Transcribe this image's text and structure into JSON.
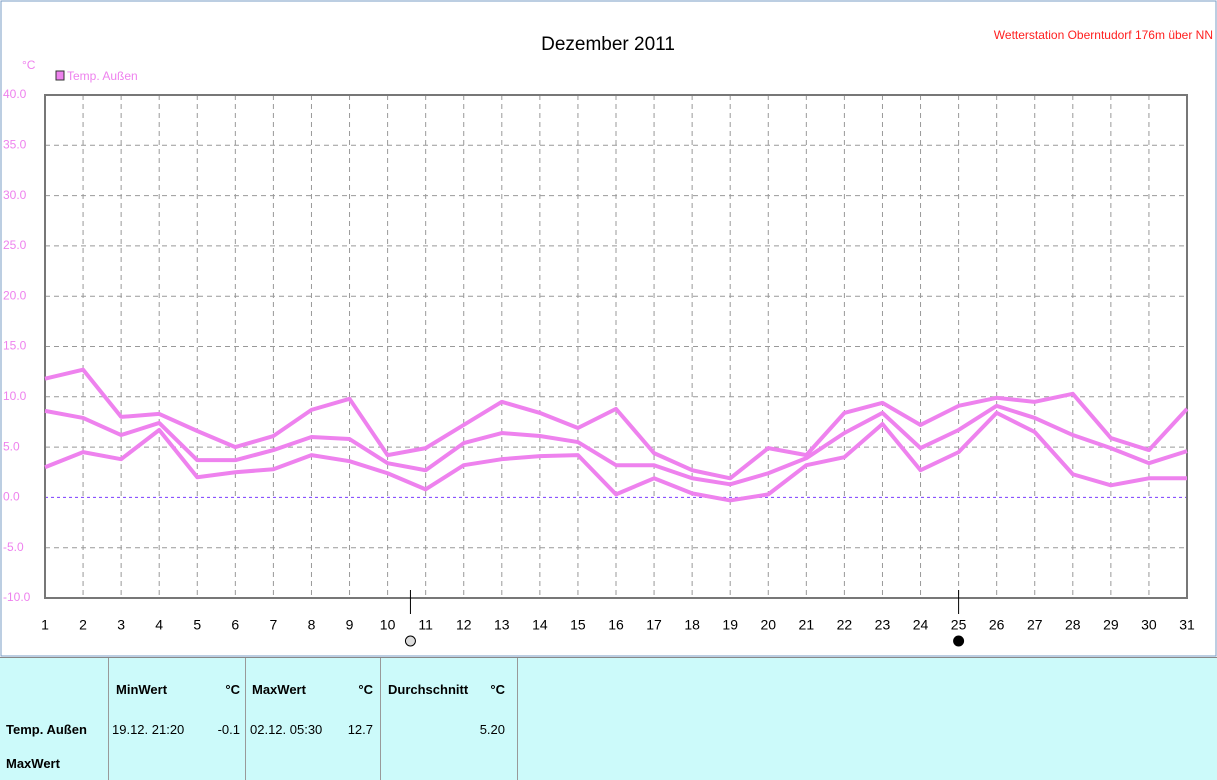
{
  "chart_data": {
    "type": "line",
    "title": "Dezember 2011",
    "station": "Wetterstation Oberntudorf 176m über NN",
    "ylabel": "°C",
    "legend": "Temp. Außen",
    "legend_color": "#ee82ee",
    "x": [
      1,
      2,
      3,
      4,
      5,
      6,
      7,
      8,
      9,
      10,
      11,
      12,
      13,
      14,
      15,
      16,
      17,
      18,
      19,
      20,
      21,
      22,
      23,
      24,
      25,
      26,
      27,
      28,
      29,
      30,
      31
    ],
    "xlim": [
      1,
      31
    ],
    "series": [
      {
        "color": "#ee82ee",
        "values": [
          11.8,
          12.7,
          8.0,
          8.3,
          6.6,
          5.0,
          6.1,
          8.7,
          9.8,
          4.2,
          4.9,
          7.2,
          9.5,
          8.4,
          6.9,
          8.8,
          4.4,
          2.7,
          1.9,
          4.9,
          4.2,
          8.4,
          9.4,
          7.2,
          9.1,
          9.9,
          9.5,
          10.3,
          5.9,
          4.7,
          8.8
        ]
      },
      {
        "color": "#ee82ee",
        "values": [
          8.6,
          7.9,
          6.2,
          7.4,
          3.7,
          3.7,
          4.7,
          6.0,
          5.8,
          3.4,
          2.7,
          5.4,
          6.4,
          6.1,
          5.5,
          3.2,
          3.2,
          1.9,
          1.3,
          2.4,
          3.9,
          6.4,
          8.4,
          4.9,
          6.7,
          9.1,
          7.9,
          6.2,
          4.9,
          3.4,
          4.6
        ]
      },
      {
        "color": "#ee82ee",
        "values": [
          3.0,
          4.5,
          3.8,
          6.7,
          2.0,
          2.5,
          2.8,
          4.2,
          3.6,
          2.4,
          0.8,
          3.2,
          3.8,
          4.1,
          4.2,
          0.3,
          1.9,
          0.4,
          -0.3,
          0.3,
          3.2,
          4.0,
          7.3,
          2.7,
          4.5,
          8.4,
          6.5,
          2.3,
          1.2,
          1.9,
          1.9
        ]
      }
    ],
    "ylim": [
      -10,
      40
    ],
    "yticks": [
      {
        "value": -10,
        "label": "-10.0"
      },
      {
        "value": -5,
        "label": "-5.0"
      },
      {
        "value": 0,
        "label": "0.0"
      },
      {
        "value": 5,
        "label": "5.0"
      },
      {
        "value": 10,
        "label": "10.0"
      },
      {
        "value": 15,
        "label": "15.0"
      },
      {
        "value": 20,
        "label": "20.0"
      },
      {
        "value": 25,
        "label": "25.0"
      },
      {
        "value": 30,
        "label": "30.0"
      },
      {
        "value": 35,
        "label": "35.0"
      },
      {
        "value": 40,
        "label": "40.0"
      }
    ],
    "grid": true,
    "zero_line_color": "#7b3cff",
    "moon_phases": [
      {
        "x": 10.6,
        "phase": "full"
      },
      {
        "x": 25,
        "phase": "new"
      }
    ]
  },
  "table": {
    "header": [
      "MinWert",
      "°C",
      "MaxWert",
      "°C",
      "Durchschnitt",
      "°C"
    ],
    "rows": [
      [
        "Temp. Außen",
        "19.12. 21:20",
        "-0.1",
        "02.12. 05:30",
        "12.7",
        "5.20"
      ]
    ],
    "footer": "MaxWert"
  }
}
